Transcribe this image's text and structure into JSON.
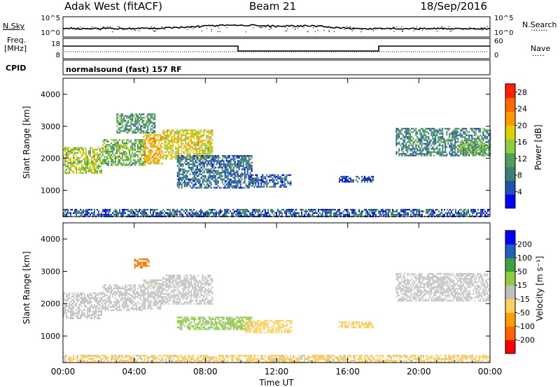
{
  "header": {
    "title": "Adak West (fitACF)",
    "beam": "Beam 21",
    "date": "18/Sep/2016"
  },
  "nsky_panel": {
    "left_label": "N.Sky",
    "right_label": "N.Search",
    "right_dots": "·······",
    "ticks": [
      "10^5",
      "10^0"
    ]
  },
  "freq_panel": {
    "left_label_1": "Freq.",
    "left_label_2": "[MHz]",
    "left_ticks": [
      "18",
      "8"
    ],
    "right_ticks": [
      "60",
      "0"
    ],
    "right_label": "Nave",
    "right_dots": "·····"
  },
  "cpid_panel": {
    "left_label": "CPID",
    "program": "normalsound (fast) 157 RF"
  },
  "colors": {
    "power": [
      "#0000ff",
      "#2050b0",
      "#3f7f6f",
      "#4fa05f",
      "#8fcf3f",
      "#e0d000",
      "#ff9900",
      "#ff6600",
      "#ff2000"
    ],
    "velocity": [
      "#ff0000",
      "#ff6600",
      "#ffa000",
      "#ffd060",
      "#c0c0c0",
      "#8fcf3f",
      "#3fa03f",
      "#2060c0",
      "#0000ff"
    ],
    "ground": "#c8c8c8"
  },
  "chart_data": [
    {
      "type": "heatmap",
      "name": "power",
      "ylabel": "Slant Range [km]",
      "xlabel": "",
      "x_ticks": [
        "00:00",
        "04:00",
        "08:00",
        "12:00",
        "16:00",
        "20:00",
        "00:00"
      ],
      "y_ticks": [
        "1000",
        "2000",
        "3000",
        "4000"
      ],
      "xlim_hours": [
        0,
        24
      ],
      "ylim_km": [
        180,
        4500
      ],
      "colorbar": {
        "label": "Power [dB]",
        "ticks": [
          "4",
          "8",
          "12",
          "16",
          "20",
          "24",
          "28"
        ],
        "range": [
          0,
          30
        ]
      },
      "regions": [
        {
          "x0": 0.0,
          "x1": 2.2,
          "y0": 1550,
          "y1": 2350,
          "value": 16
        },
        {
          "x0": 2.2,
          "x1": 4.6,
          "y0": 1800,
          "y1": 2600,
          "value": 13
        },
        {
          "x0": 4.5,
          "x1": 5.6,
          "y0": 1850,
          "y1": 2750,
          "value": 20
        },
        {
          "x0": 5.6,
          "x1": 8.4,
          "y0": 2000,
          "y1": 2900,
          "value": 18
        },
        {
          "x0": 3.0,
          "x1": 5.2,
          "y0": 2800,
          "y1": 3400,
          "value": 10
        },
        {
          "x0": 6.4,
          "x1": 10.6,
          "y0": 1100,
          "y1": 2100,
          "value": 7
        },
        {
          "x0": 10.4,
          "x1": 12.8,
          "y0": 1100,
          "y1": 1500,
          "value": 6
        },
        {
          "x0": 15.5,
          "x1": 17.4,
          "y0": 1250,
          "y1": 1450,
          "value": 5
        },
        {
          "x0": 18.7,
          "x1": 24.0,
          "y0": 2100,
          "y1": 2950,
          "value": 9
        },
        {
          "x0": 22.3,
          "x1": 24.0,
          "y0": 2100,
          "y1": 2500,
          "value": 13
        },
        {
          "x0": 0.0,
          "x1": 24.0,
          "y0": 180,
          "y1": 420,
          "value": 6
        }
      ]
    },
    {
      "type": "heatmap",
      "name": "velocity",
      "xlabel": "Time UT",
      "ylabel": "Slant Range [km]",
      "x_ticks": [
        "00:00",
        "04:00",
        "08:00",
        "12:00",
        "16:00",
        "20:00",
        "00:00"
      ],
      "y_ticks": [
        "1000",
        "2000",
        "3000",
        "4000"
      ],
      "xlim_hours": [
        0,
        24
      ],
      "ylim_km": [
        180,
        4500
      ],
      "colorbar": {
        "label": "Velocity [m s⁻¹]",
        "ticks": [
          "200",
          "100",
          "50",
          "15",
          "-15",
          "-50",
          "-100",
          "-200"
        ],
        "range": [
          -250,
          250
        ]
      },
      "regions": [
        {
          "x0": 0.0,
          "x1": 2.2,
          "y0": 1550,
          "y1": 2350,
          "value": 0
        },
        {
          "x0": 2.2,
          "x1": 4.6,
          "y0": 1800,
          "y1": 2600,
          "value": 0
        },
        {
          "x0": 4.5,
          "x1": 5.6,
          "y0": 1850,
          "y1": 2750,
          "value": -10
        },
        {
          "x0": 5.6,
          "x1": 8.4,
          "y0": 2000,
          "y1": 2900,
          "value": 0
        },
        {
          "x0": 4.0,
          "x1": 4.8,
          "y0": 3100,
          "y1": 3400,
          "value": -150
        },
        {
          "x0": 6.4,
          "x1": 10.6,
          "y0": 1200,
          "y1": 1600,
          "value": 40
        },
        {
          "x0": 10.2,
          "x1": 12.8,
          "y0": 1100,
          "y1": 1500,
          "value": -60
        },
        {
          "x0": 15.5,
          "x1": 17.4,
          "y0": 1250,
          "y1": 1450,
          "value": -60
        },
        {
          "x0": 18.7,
          "x1": 24.0,
          "y0": 2100,
          "y1": 2950,
          "value": 0
        },
        {
          "x0": 0.0,
          "x1": 24.0,
          "y0": 180,
          "y1": 420,
          "value": -40
        }
      ]
    }
  ]
}
